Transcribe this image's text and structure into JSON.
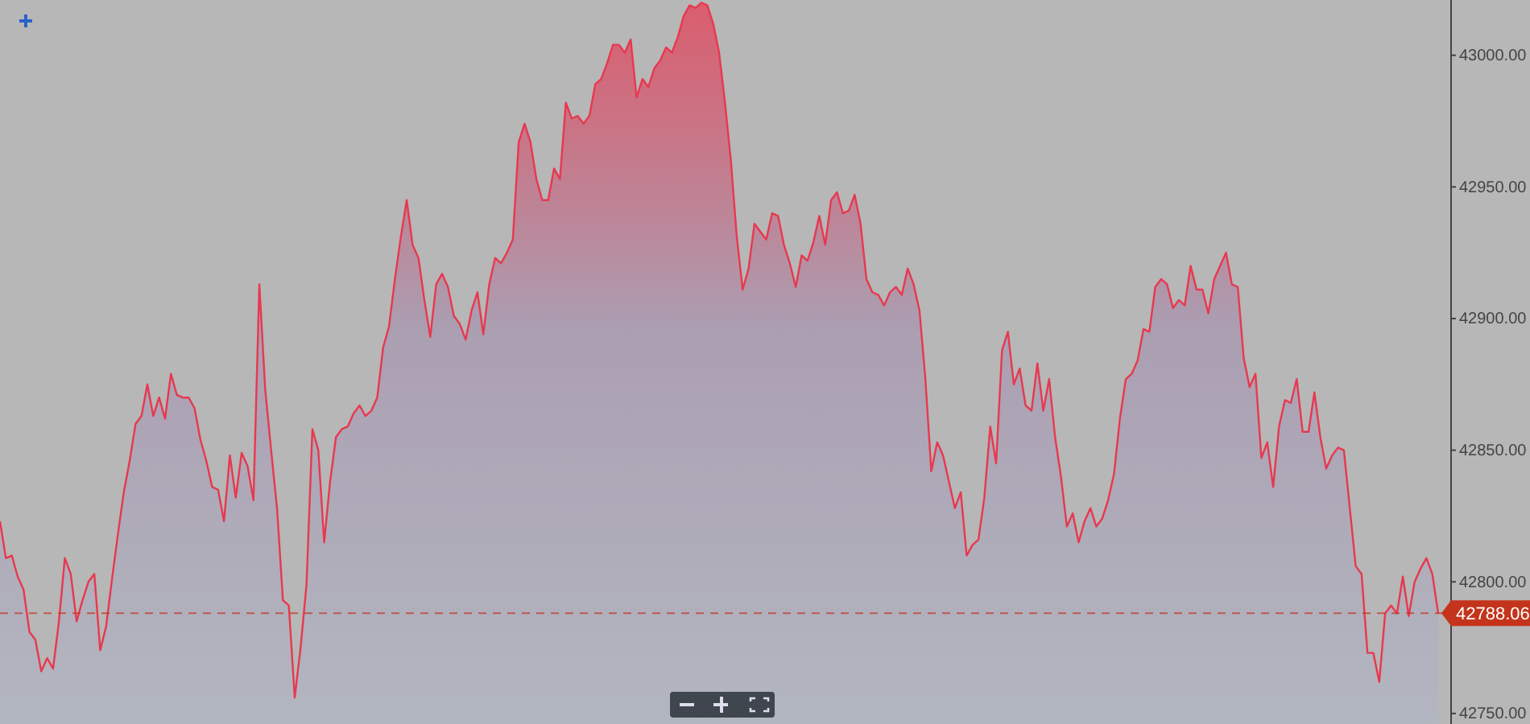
{
  "chart_data": {
    "type": "area",
    "color": "#e8384f",
    "categories": [
      null,
      null,
      null,
      null,
      null,
      null,
      null,
      null,
      null,
      null,
      null,
      null,
      null,
      null,
      null,
      null,
      null,
      null,
      null,
      null,
      null,
      null,
      null,
      null,
      null,
      null,
      null,
      null,
      null,
      null,
      null,
      null,
      null,
      null,
      null,
      null,
      null,
      null,
      null,
      null,
      null,
      null,
      null,
      null,
      null,
      null,
      null,
      null,
      null,
      null,
      null,
      null,
      null,
      null,
      null,
      null,
      null,
      null,
      null,
      null,
      null,
      null,
      null,
      null,
      null,
      null,
      null,
      null,
      null,
      null,
      null,
      null,
      null,
      null,
      null,
      null,
      null,
      null,
      null,
      null,
      null,
      null,
      null,
      null,
      null,
      null,
      null,
      null,
      null,
      null,
      null,
      null,
      null,
      null,
      null,
      null,
      null,
      null,
      null,
      null,
      null,
      null,
      null,
      null,
      null,
      null,
      null,
      null,
      null,
      null,
      null,
      null,
      null,
      null,
      null,
      null,
      null,
      null,
      null,
      null,
      null,
      null,
      null,
      null,
      null,
      null,
      null,
      null,
      null,
      null,
      null,
      null,
      null,
      null,
      null,
      null,
      null,
      null,
      null,
      null,
      null,
      null,
      null,
      null,
      null,
      null,
      null,
      null,
      null,
      null,
      null,
      null,
      null,
      null,
      null,
      null,
      null,
      null,
      null,
      null,
      null,
      null,
      null,
      null,
      null,
      null,
      null,
      null,
      null,
      null,
      null,
      null,
      null,
      null,
      null,
      null,
      null,
      null,
      null,
      null,
      null,
      null,
      null,
      null,
      null,
      null,
      null,
      null,
      null,
      null,
      null,
      null,
      null,
      null,
      null,
      null,
      null,
      null,
      null,
      null,
      null,
      null,
      null,
      null,
      null,
      null,
      null,
      null,
      null,
      null,
      null,
      null,
      null,
      null,
      null,
      null,
      null,
      null,
      null,
      null,
      null,
      null,
      null,
      null,
      null,
      null,
      null,
      null,
      null,
      null,
      null,
      null,
      null,
      null,
      null,
      null,
      null,
      null,
      null,
      null,
      null,
      null,
      null,
      null,
      null
    ],
    "values": [
      42823,
      42809,
      42810,
      42802,
      42797,
      42781,
      42778,
      42766,
      42771,
      42767,
      42785,
      42809,
      42803,
      42785,
      42793,
      42800,
      42803,
      42774,
      42783,
      42801,
      42818,
      42834,
      42846,
      42860,
      42863,
      42875,
      42863,
      42870,
      42862,
      42879,
      42871,
      42870,
      42870,
      42866,
      42854,
      42846,
      42836,
      42835,
      42823,
      42848,
      42832,
      42849,
      42844,
      42831,
      42913,
      42873,
      42850,
      42828,
      42793,
      42791,
      42756,
      42775,
      42799,
      42858,
      42850,
      42815,
      42838,
      42855,
      42858,
      42859,
      42864,
      42867,
      42863,
      42865,
      42870,
      42889,
      42897,
      42915,
      42931,
      42945,
      42928,
      42923,
      42907,
      42893,
      42913,
      42917,
      42912,
      42901,
      42898,
      42892,
      42903,
      42910,
      42894,
      42913,
      42923,
      42921,
      42925,
      42930,
      42967,
      42974,
      42967,
      42953,
      42945,
      42945,
      42957,
      42953,
      42982,
      42976,
      42977,
      42974,
      42977,
      42989,
      42991,
      42997,
      43004,
      43004,
      43001,
      43006,
      42984,
      42991,
      42988,
      42995,
      42998,
      43003,
      43001,
      43007,
      43015,
      43019,
      43018,
      43020,
      43019,
      43012,
      43001,
      42982,
      42960,
      42931,
      42911,
      42919,
      42936,
      42933,
      42930,
      42940,
      42939,
      42928,
      42921,
      42912,
      42924,
      42922,
      42929,
      42939,
      42928,
      42945,
      42948,
      42940,
      42941,
      42947,
      42936,
      42915,
      42910,
      42909,
      42905,
      42910,
      42912,
      42909,
      42919,
      42913,
      42903,
      42877,
      42842,
      42853,
      42848,
      42838,
      42828,
      42834,
      42810,
      42814,
      42816,
      42832,
      42859,
      42845,
      42888,
      42895,
      42875,
      42881,
      42867,
      42865,
      42883,
      42865,
      42877,
      42855,
      42840,
      42821,
      42826,
      42815,
      42823,
      42828,
      42821,
      42824,
      42831,
      42841,
      42862,
      42877,
      42879,
      42884,
      42896,
      42895,
      42912,
      42915,
      42913,
      42904,
      42907,
      42905,
      42920,
      42911,
      42911,
      42902,
      42915,
      42920,
      42925,
      42913,
      42912,
      42885,
      42874,
      42879,
      42847,
      42853,
      42836,
      42859,
      42869,
      42868,
      42877,
      42857,
      42857,
      42872,
      42855,
      42843,
      42848,
      42851,
      42850,
      42828,
      42806,
      42803,
      42773,
      42773,
      42762,
      42788,
      42791,
      42788,
      42802,
      42787,
      42800,
      42805,
      42809,
      42803,
      42788
    ],
    "ylim": [
      42746,
      43021
    ],
    "yticks": [
      {
        "value": 42750,
        "label": "42750.00"
      },
      {
        "value": 42800,
        "label": "42800.00"
      },
      {
        "value": 42850,
        "label": "42850.00"
      },
      {
        "value": 42900,
        "label": "42900.00"
      },
      {
        "value": 42950,
        "label": "42950.00"
      },
      {
        "value": 43000,
        "label": "43000.00"
      }
    ],
    "tick_labels": "y",
    "ref_lines": [
      {
        "axis": "y",
        "value": 42788.06,
        "label": "42788.06",
        "color": "#c4341c",
        "line_style": "dashed"
      }
    ]
  }
}
